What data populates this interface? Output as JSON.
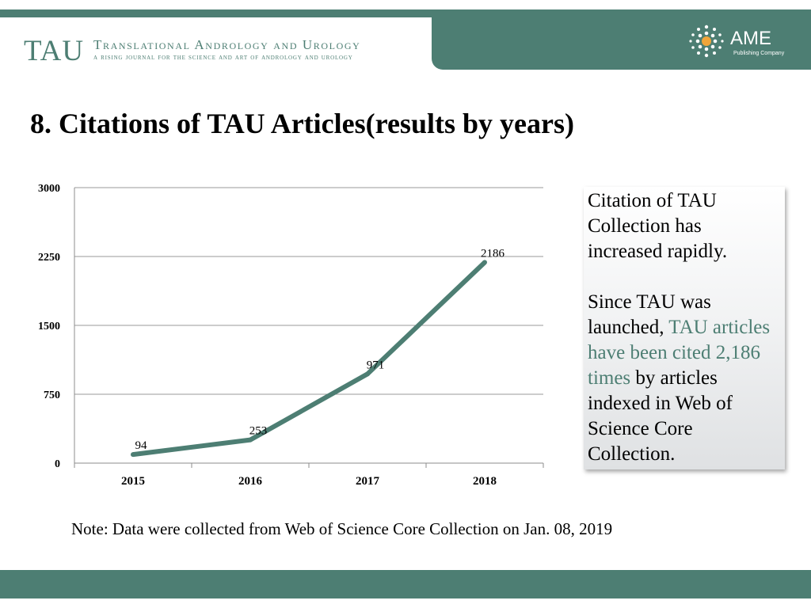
{
  "header": {
    "journal_abbr": "TAU",
    "journal_name": "Translational Andrology and Urology",
    "journal_tagline": "A rising journal for the science and art of andrology and urology",
    "publisher_name": "AME",
    "publisher_sub": "Publishing Company",
    "brand_color": "#4d7e73"
  },
  "slide": {
    "title": "8.  Citations of TAU Articles(results by years)"
  },
  "chart_data": {
    "type": "line",
    "categories": [
      "2015",
      "2016",
      "2017",
      "2018"
    ],
    "series": [
      {
        "values": [
          94,
          253,
          971,
          2186
        ],
        "color": "#4d7e73"
      }
    ],
    "ylim": [
      0,
      3000
    ],
    "yticks": [
      0,
      750,
      1500,
      2250,
      3000
    ],
    "grid": true,
    "legend": "none",
    "data_labels": true
  },
  "callout": {
    "line1": "Citation of TAU Collection has increased rapidly.",
    "line2_before": "Since TAU was launched, ",
    "line2_highlight": "TAU articles have been cited 2,186 times",
    "line2_after": " by articles indexed in Web of Science Core Collection."
  },
  "note": "Note: Data were collected from Web of Science Core Collection on Jan. 08, 2019"
}
